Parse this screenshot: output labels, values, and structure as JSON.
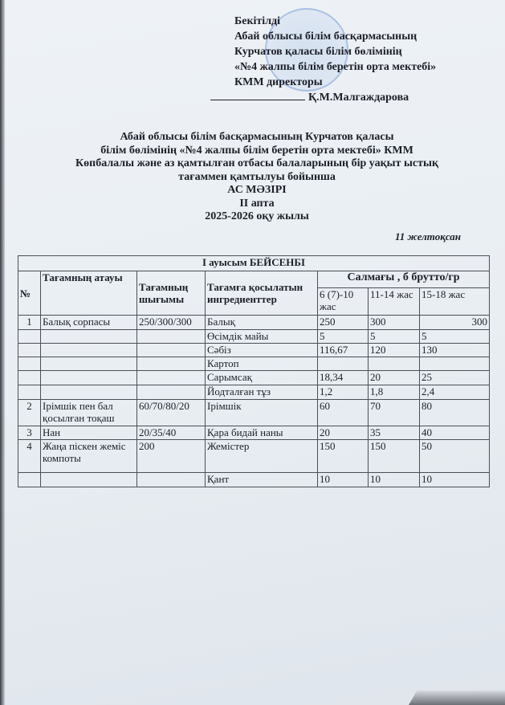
{
  "approval": {
    "lines": [
      "Бекітілді",
      "Абай облысы білім басқармасының",
      "Курчатов қаласы білім бөлімінің",
      "«№4 жалпы білім беретін орта мектебі»",
      "КММ директоры"
    ],
    "signatory": "Қ.М.Малгаждарова"
  },
  "heading": {
    "lines": [
      "Абай облысы білім басқармасының Курчатов қаласы",
      "білім бөлімінің «№4 жалпы білім беретін орта мектебі» КММ",
      "Көпбалалы және аз қамтылған отбасы балаларының бір уақыт ыстық",
      "тағаммен қамтылуы бойынша"
    ],
    "title": "АС МӘЗІРІ",
    "week": "ІІ апта",
    "year": "2025-2026 оқу жылы"
  },
  "date": "11 желтоқсан",
  "table": {
    "caption": "І ауысым  БЕЙСЕНБІ",
    "headers": {
      "no": "№",
      "name": "Тағамның атауы",
      "output": "Тағамның шығымы",
      "ingredient": "Тағамға қосылатын ингредиенттер",
      "weight": "Салмағы , б брутто/гр",
      "age1": "6 (7)-10 жас",
      "age2": "11-14 жас",
      "age3": "15-18 жас"
    },
    "rows": [
      {
        "no": "1",
        "name": "Балық сорпасы",
        "output": "250/300/300",
        "ingredient": "Балық",
        "a1": "250",
        "a2": "300",
        "a3": "300"
      },
      {
        "no": "",
        "name": "",
        "output": "",
        "ingredient": "Өсімдік майы",
        "a1": "5",
        "a2": "5",
        "a3": "5"
      },
      {
        "no": "",
        "name": "",
        "output": "",
        "ingredient": "Сәбіз",
        "a1": "116,67",
        "a2": "120",
        "a3": "130"
      },
      {
        "no": "",
        "name": "",
        "output": "",
        "ingredient": "Картоп",
        "a1": "",
        "a2": "",
        "a3": ""
      },
      {
        "no": "",
        "name": "",
        "output": "",
        "ingredient": "Сарымсақ",
        "a1": "18,34",
        "a2": "20",
        "a3": "25"
      },
      {
        "no": "",
        "name": "",
        "output": "",
        "ingredient": "Йодталған тұз",
        "a1": "1,2",
        "a2": "1,8",
        "a3": "2,4"
      },
      {
        "no": "2",
        "name": "Ірімшік пен бал қосылған тоқаш",
        "output": "60/70/80/20",
        "ingredient": "Ірімшік",
        "a1": "60",
        "a2": "70",
        "a3": "80"
      },
      {
        "no": "3",
        "name": "Нан",
        "output": "20/35/40",
        "ingredient": "Қара бидай наны",
        "a1": "20",
        "a2": "35",
        "a3": "40"
      },
      {
        "no": "4",
        "name": "Жаңа піскен жеміс компоты",
        "output": "200",
        "ingredient": "Жемістер",
        "a1": "150",
        "a2": "150",
        "a3": "50"
      },
      {
        "no": "",
        "name": "",
        "output": "",
        "ingredient": "Қант",
        "a1": "10",
        "a2": "10",
        "a3": "10"
      }
    ]
  }
}
